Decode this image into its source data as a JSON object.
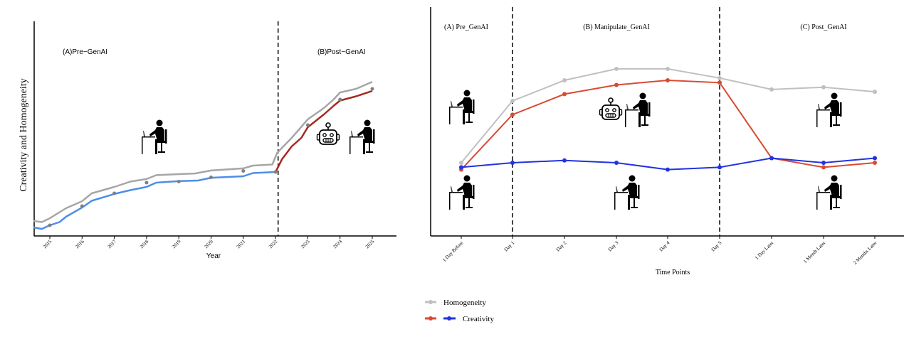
{
  "chart_data": [
    {
      "type": "line",
      "title": "",
      "xlabel": "Year",
      "ylabel": "Creativity and Homogeneity",
      "xlim": [
        2014.5,
        2025.7
      ],
      "ylim": [
        0,
        100
      ],
      "x_ticks": [
        "2015",
        "2016",
        "2017",
        "2018",
        "2019",
        "2020",
        "2021",
        "2022",
        "2023",
        "2024",
        "2025"
      ],
      "divider_x": 2022,
      "annotations": [
        "(A)Pre−GenAI",
        "(B)Post−GenAI"
      ],
      "series": [
        {
          "name": "Homogeneity",
          "color": "#a6a6a6",
          "points": [
            [
              2014.5,
              7
            ],
            [
              2014.75,
              6.5
            ],
            [
              2015,
              8.3
            ],
            [
              2015.5,
              13
            ],
            [
              2016,
              16.3
            ],
            [
              2016.3,
              20
            ],
            [
              2017,
              23
            ],
            [
              2017.5,
              25.5
            ],
            [
              2018,
              26.7
            ],
            [
              2018.3,
              28.5
            ],
            [
              2019,
              29
            ],
            [
              2019.5,
              29.3
            ],
            [
              2020,
              30.7
            ],
            [
              2021,
              31.7
            ],
            [
              2021.3,
              33
            ],
            [
              2021.9,
              33.5
            ],
            [
              2022.05,
              39
            ],
            [
              2022.5,
              46
            ],
            [
              2023,
              54.7
            ],
            [
              2023.5,
              60
            ],
            [
              2023.8,
              64
            ],
            [
              2024,
              67.3
            ],
            [
              2024.5,
              69
            ],
            [
              2025,
              72.3
            ]
          ]
        },
        {
          "name": "Creativity (Pre-GenAI)",
          "color": "#4a8fe8",
          "points": [
            [
              2014.5,
              4
            ],
            [
              2014.75,
              3.3
            ],
            [
              2015,
              5
            ],
            [
              2015.3,
              6.5
            ],
            [
              2015.5,
              9
            ],
            [
              2016,
              13.3
            ],
            [
              2016.3,
              16.5
            ],
            [
              2017,
              19.7
            ],
            [
              2017.5,
              21.5
            ],
            [
              2018,
              23
            ],
            [
              2018.3,
              25
            ],
            [
              2019,
              25.7
            ],
            [
              2019.6,
              26
            ],
            [
              2020,
              27.3
            ],
            [
              2021,
              28
            ],
            [
              2021.3,
              29.5
            ],
            [
              2022,
              30
            ]
          ]
        },
        {
          "name": "Creativity (Post-GenAI)",
          "color": "#a52a1e",
          "points": [
            [
              2022,
              30
            ],
            [
              2022.2,
              36
            ],
            [
              2022.5,
              42
            ],
            [
              2022.8,
              46
            ],
            [
              2023,
              51
            ],
            [
              2023.5,
              57
            ],
            [
              2023.8,
              61
            ],
            [
              2024,
              63.5
            ],
            [
              2024.5,
              65.5
            ],
            [
              2025,
              68
            ]
          ]
        }
      ],
      "markers": [
        [
          2015,
          5
        ],
        [
          2016,
          14
        ],
        [
          2017,
          20
        ],
        [
          2018,
          25
        ],
        [
          2019,
          25.5
        ],
        [
          2020,
          27.5
        ],
        [
          2021,
          30.5
        ],
        [
          2022,
          30
        ],
        [
          2023,
          52
        ],
        [
          2024,
          64
        ],
        [
          2025,
          69
        ]
      ]
    },
    {
      "type": "line",
      "title": "",
      "xlabel": "Time Points",
      "ylabel": "",
      "ylim": [
        0,
        100
      ],
      "categories": [
        "1 Day Before",
        "Day 1",
        "Day 2",
        "Day 3",
        "Day 4",
        "Day 5",
        "1 Day Later",
        "1 Month Later",
        "2 Months Later"
      ],
      "dividers": [
        "Day 1",
        "Day 5"
      ],
      "annotations": [
        "(A) Pre_GenAI",
        "(B) Manipulate_GenAI",
        "(C) Post_GenAI"
      ],
      "series": [
        {
          "name": "Homogeneity",
          "color": "#c0c0c0",
          "values": [
            32,
            59,
            68,
            73,
            73,
            69,
            64,
            65,
            63
          ]
        },
        {
          "name": "Creativity",
          "color": "#d84a33",
          "values": [
            29,
            53,
            62,
            66,
            68,
            67,
            34,
            30,
            32
          ]
        },
        {
          "name": "Creativity",
          "color": "#2233e0",
          "values": [
            30,
            32,
            33,
            32,
            29,
            30,
            34,
            32,
            34
          ]
        }
      ],
      "legend": {
        "position": "bottom-left",
        "homogeneity_label": "Homogeneity",
        "creativity_label": "Creativity"
      }
    }
  ]
}
